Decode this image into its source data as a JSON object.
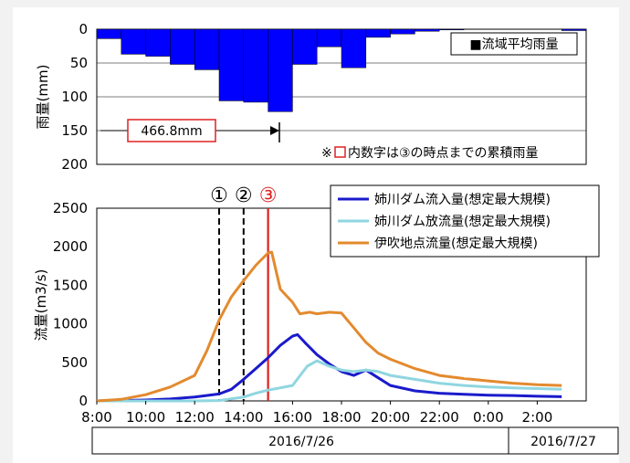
{
  "chart_data": [
    {
      "type": "bar",
      "ylabel": "雨量(mm)",
      "ylim": [
        0,
        200
      ],
      "y_inverted": true,
      "yticks": [
        0,
        50,
        100,
        150,
        200
      ],
      "legend": {
        "label": "■流域平均雨量",
        "placement": "top-right"
      },
      "bar_color": "#0000ff",
      "x_hours_from": "8:00",
      "bars": [
        {
          "x": 8,
          "value": 14
        },
        {
          "x": 9,
          "value": 37
        },
        {
          "x": 10,
          "value": 40
        },
        {
          "x": 11,
          "value": 52
        },
        {
          "x": 12,
          "value": 60
        },
        {
          "x": 13,
          "value": 106
        },
        {
          "x": 14,
          "value": 108
        },
        {
          "x": 15,
          "value": 122
        },
        {
          "x": 16,
          "value": 52
        },
        {
          "x": 17,
          "value": 26
        },
        {
          "x": 18,
          "value": 57
        },
        {
          "x": 19,
          "value": 12
        },
        {
          "x": 20,
          "value": 7
        },
        {
          "x": 21,
          "value": 3
        },
        {
          "x": 22,
          "value": 1
        },
        {
          "x": 23,
          "value": 0
        },
        {
          "x": 24,
          "value": 0
        },
        {
          "x": 25,
          "value": 0
        },
        {
          "x": 26,
          "value": 0
        },
        {
          "x": 27,
          "value": 2
        }
      ],
      "cumulative_label": "466.8mm",
      "note_prefix": "※",
      "note_suffix": "内数字は③の時点までの累積雨量"
    },
    {
      "type": "line",
      "ylabel": "流量(m3/s)",
      "ylim": [
        0,
        2500
      ],
      "yticks": [
        0,
        500,
        1000,
        1500,
        2000,
        2500
      ],
      "x_ticks": [
        "8:00",
        "10:00",
        "12:00",
        "14:00",
        "16:00",
        "18:00",
        "20:00",
        "22:00",
        "0:00",
        "2:00"
      ],
      "legend_placement": "top-right",
      "series": [
        {
          "name": "姉川ダム流入量(想定最大規模)",
          "color": "#1a1acc",
          "points": [
            [
              8,
              0
            ],
            [
              9,
              5
            ],
            [
              10,
              12
            ],
            [
              11,
              25
            ],
            [
              12,
              50
            ],
            [
              13,
              90
            ],
            [
              13.5,
              150
            ],
            [
              14,
              280
            ],
            [
              14.5,
              420
            ],
            [
              15,
              560
            ],
            [
              15.5,
              720
            ],
            [
              16,
              840
            ],
            [
              16.2,
              860
            ],
            [
              16.5,
              760
            ],
            [
              17,
              600
            ],
            [
              17.5,
              480
            ],
            [
              18,
              380
            ],
            [
              18.5,
              330
            ],
            [
              19,
              400
            ],
            [
              19.5,
              300
            ],
            [
              20,
              200
            ],
            [
              21,
              130
            ],
            [
              22,
              100
            ],
            [
              23,
              85
            ],
            [
              24,
              75
            ],
            [
              25,
              70
            ],
            [
              26,
              60
            ],
            [
              27,
              55
            ]
          ]
        },
        {
          "name": "姉川ダム放流量(想定最大規模)",
          "color": "#8fd6e0",
          "points": [
            [
              8,
              0
            ],
            [
              12,
              0
            ],
            [
              13,
              5
            ],
            [
              14,
              50
            ],
            [
              14.5,
              100
            ],
            [
              15,
              140
            ],
            [
              15.5,
              170
            ],
            [
              16,
              200
            ],
            [
              16.6,
              450
            ],
            [
              17,
              520
            ],
            [
              17.5,
              450
            ],
            [
              18,
              400
            ],
            [
              18.5,
              380
            ],
            [
              19,
              400
            ],
            [
              19.5,
              380
            ],
            [
              20,
              330
            ],
            [
              21,
              280
            ],
            [
              22,
              230
            ],
            [
              23,
              200
            ],
            [
              24,
              180
            ],
            [
              25,
              170
            ],
            [
              26,
              160
            ],
            [
              27,
              150
            ]
          ]
        },
        {
          "name": "伊吹地点流量(想定最大規模)",
          "color": "#e38a2e",
          "points": [
            [
              8,
              0
            ],
            [
              9,
              20
            ],
            [
              10,
              80
            ],
            [
              11,
              180
            ],
            [
              12,
              330
            ],
            [
              12.5,
              650
            ],
            [
              13,
              1050
            ],
            [
              13.5,
              1350
            ],
            [
              14,
              1560
            ],
            [
              14.5,
              1760
            ],
            [
              15,
              1920
            ],
            [
              15.15,
              1930
            ],
            [
              15.5,
              1450
            ],
            [
              16,
              1280
            ],
            [
              16.3,
              1130
            ],
            [
              16.7,
              1150
            ],
            [
              17,
              1130
            ],
            [
              17.5,
              1150
            ],
            [
              18,
              1140
            ],
            [
              18.5,
              950
            ],
            [
              19,
              760
            ],
            [
              19.5,
              620
            ],
            [
              20,
              540
            ],
            [
              21,
              420
            ],
            [
              22,
              330
            ],
            [
              23,
              290
            ],
            [
              24,
              260
            ],
            [
              25,
              230
            ],
            [
              26,
              210
            ],
            [
              27,
              200
            ]
          ]
        }
      ],
      "markers": [
        {
          "label": "①",
          "x": 13,
          "style": "dashed",
          "color": "#000000"
        },
        {
          "label": "②",
          "x": 14,
          "style": "dashed",
          "color": "#000000"
        },
        {
          "label": "③",
          "x": 15,
          "style": "solid",
          "color": "#e02020"
        }
      ],
      "date_labels": [
        "2016/7/26",
        "2016/7/27"
      ]
    }
  ]
}
